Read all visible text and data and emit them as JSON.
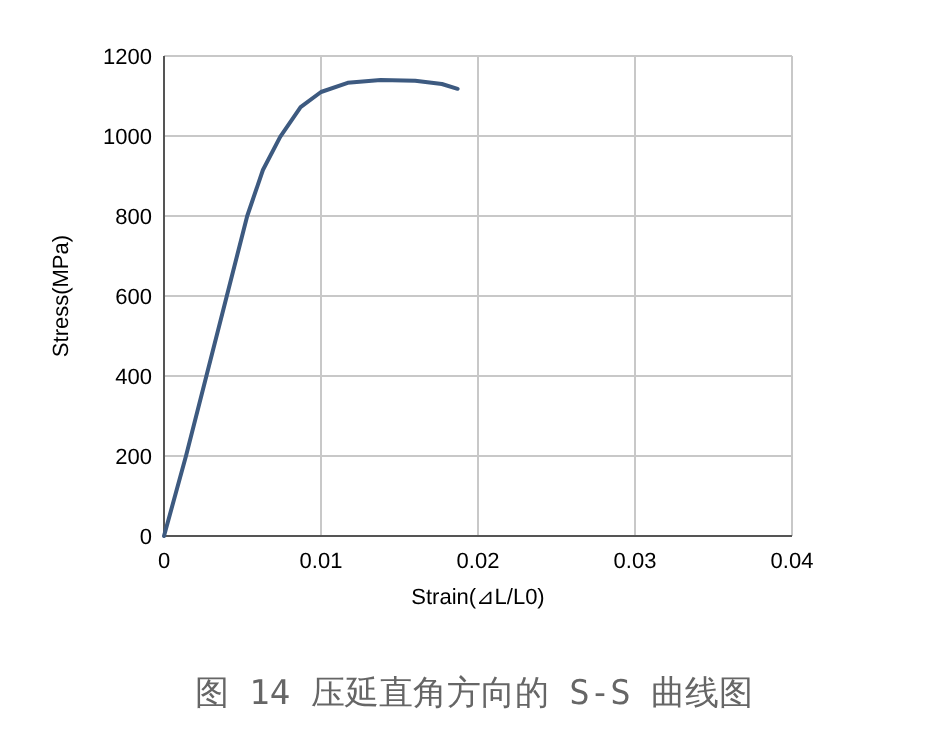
{
  "chart_data": {
    "type": "line",
    "xlabel": "Strain(⊿L/L0)",
    "ylabel": "Stress(MPa)",
    "annotations": [
      "图 14 压延直角方向的 S-S 曲线图"
    ],
    "x": [
      0,
      0.0014,
      0.0027,
      0.004,
      0.0053,
      0.0063,
      0.0074,
      0.0087,
      0.01,
      0.0117,
      0.0138,
      0.016,
      0.0177,
      0.0187
    ],
    "series": [
      {
        "color": "#3d5a80",
        "values": [
          0,
          200,
          400,
          600,
          800,
          915,
          998,
          1072,
          1110,
          1133,
          1140,
          1138,
          1130,
          1118
        ]
      }
    ],
    "xlim": [
      0,
      0.04
    ],
    "xticks": [
      0,
      0.01,
      0.02,
      0.03,
      0.04
    ],
    "ylim": [
      0,
      1200
    ],
    "yticks": [
      0,
      200,
      400,
      600,
      800,
      1000,
      1200
    ],
    "grid": true,
    "marker": "none",
    "line_style": "solid"
  }
}
